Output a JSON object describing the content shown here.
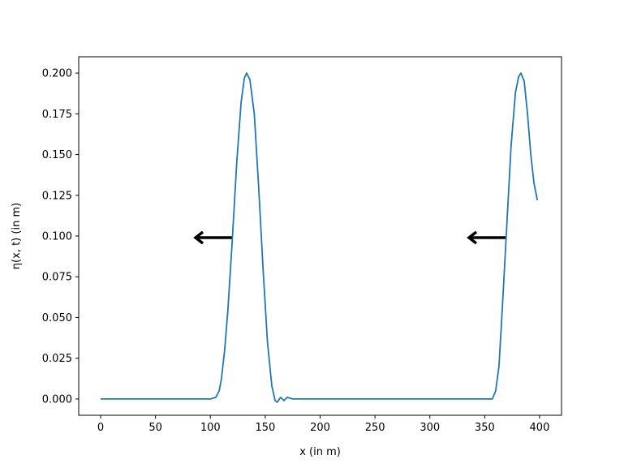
{
  "chart_data": {
    "type": "line",
    "xlabel": "x (in m)",
    "ylabel": "η(x, t) (in m)",
    "xlim": [
      -20,
      420
    ],
    "ylim": [
      -0.01,
      0.21
    ],
    "xticks": [
      0,
      50,
      100,
      150,
      200,
      250,
      300,
      350,
      400
    ],
    "yticks": [
      {
        "value": 0,
        "label": "0.000"
      },
      {
        "value": 0.025,
        "label": "0.025"
      },
      {
        "value": 0.05,
        "label": "0.050"
      },
      {
        "value": 0.075,
        "label": "0.075"
      },
      {
        "value": 0.1,
        "label": "0.100"
      },
      {
        "value": 0.125,
        "label": "0.125"
      },
      {
        "value": 0.15,
        "label": "0.150"
      },
      {
        "value": 0.175,
        "label": "0.175"
      },
      {
        "value": 0.2,
        "label": "0.200"
      }
    ],
    "x": [
      0,
      20,
      40,
      60,
      80,
      100,
      105,
      108,
      110,
      113,
      116,
      120,
      124,
      128,
      131,
      133,
      136,
      140,
      144,
      148,
      152,
      156,
      159,
      161,
      164,
      167,
      170,
      175,
      200,
      250,
      300,
      355,
      357,
      360,
      363,
      366,
      370,
      374,
      378,
      381,
      383,
      386,
      389,
      392,
      395,
      398
    ],
    "series": [
      {
        "color": "#1f77b4",
        "values": [
          0,
          0,
          0,
          0,
          0,
          0,
          0.001,
          0.005,
          0.012,
          0.03,
          0.055,
          0.098,
          0.145,
          0.182,
          0.197,
          0.2,
          0.196,
          0.175,
          0.13,
          0.08,
          0.035,
          0.008,
          -0.001,
          -0.002,
          0.001,
          -0.001,
          0.001,
          0,
          0,
          0,
          0,
          0,
          0,
          0.005,
          0.02,
          0.055,
          0.105,
          0.155,
          0.188,
          0.198,
          0.2,
          0.195,
          0.175,
          0.15,
          0.132,
          0.122
        ]
      }
    ]
  }
}
